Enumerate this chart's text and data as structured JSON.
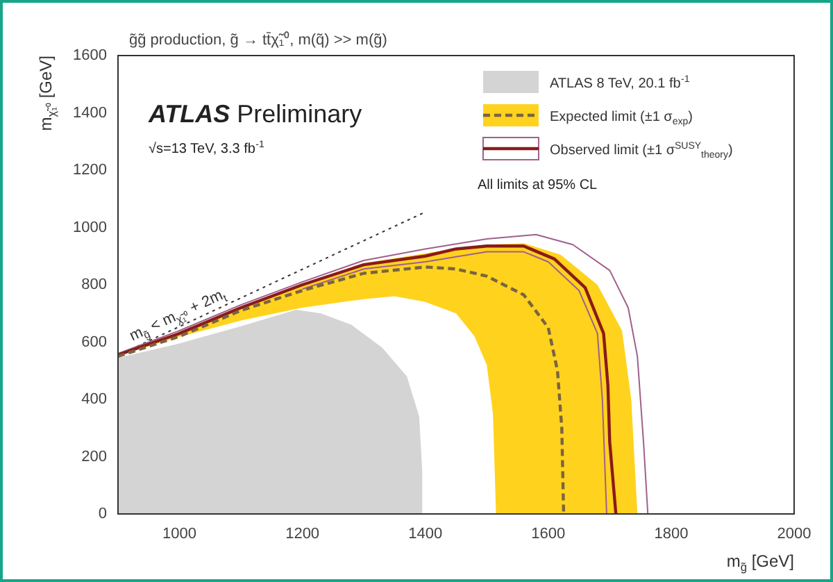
{
  "chart_data": {
    "type": "line",
    "title": "g̃g̃ production, g̃ → tt̄χ̃₁⁰, m(q̃) >> m(g̃)",
    "xlabel": "m$_{g̃}$ [GeV]",
    "ylabel": "m$_{χ̃₁⁰}$ [GeV]",
    "xlim": [
      900,
      2000
    ],
    "xticks": [
      1000,
      1200,
      1400,
      1600,
      1800,
      2000
    ],
    "ylim": [
      0,
      1600
    ],
    "yticks": [
      0,
      200,
      400,
      600,
      800,
      1000,
      1200,
      1400,
      1600
    ],
    "grid": false,
    "legend": "top right",
    "marker": "none",
    "annotations": [
      "ATLAS Preliminary",
      "√s=13 TeV, 3.3 fb$^{-1}$",
      "All limits at 95% CL",
      {
        "text": "m$_{g̃}$ < m$_{χ̃₁⁰}$ + 2m$_{t}$",
        "x": 1000,
        "y": 680
      }
    ],
    "series": [
      {
        "type": "area",
        "name": "ATLAS 8 TeV, 20.1 fb$^{-1}$",
        "color": "#d4d4d4",
        "x": [
          900,
          900,
          1000,
          1100,
          1190,
          1230,
          1280,
          1330,
          1370,
          1390,
          1395,
          1395
        ],
        "values": [
          0,
          545,
          595,
          655,
          713,
          700,
          660,
          580,
          480,
          340,
          150,
          0
        ]
      },
      {
        "name": "Expected limit (±1 σ$_{exp}$)",
        "color": "#7a6440",
        "line_style": "dashed",
        "x": [
          900,
          1000,
          1100,
          1200,
          1300,
          1400,
          1450,
          1500,
          1560,
          1600,
          1615,
          1622,
          1625
        ],
        "values": [
          550,
          620,
          710,
          780,
          840,
          862,
          855,
          830,
          765,
          650,
          500,
          300,
          0
        ]
      },
      {
        "type": "area",
        "color": "#ffd21e",
        "x": [
          900,
          1000,
          1100,
          1200,
          1300,
          1400,
          1500,
          1560,
          1620,
          1680,
          1720,
          1735,
          1745,
          1515,
          1510,
          1500,
          1480,
          1450,
          1400,
          1350,
          1300,
          1200,
          1100,
          1000,
          900
        ],
        "values": [
          558,
          635,
          725,
          800,
          875,
          910,
          940,
          945,
          905,
          800,
          640,
          400,
          0,
          0,
          350,
          520,
          620,
          700,
          740,
          760,
          750,
          720,
          675,
          618,
          552
        ]
      },
      {
        "name": "Observed limit (±1 σ$^{SUSY}$$_{theory}$)",
        "color": "#8b1a1a",
        "x": [
          900,
          1000,
          1100,
          1200,
          1300,
          1400,
          1450,
          1500,
          1560,
          1610,
          1660,
          1690,
          1697,
          1700,
          1710
        ],
        "values": [
          555,
          630,
          720,
          800,
          870,
          900,
          925,
          935,
          935,
          890,
          790,
          630,
          450,
          250,
          0
        ]
      },
      {
        "color": "#a0608a",
        "x": [
          900,
          1000,
          1100,
          1200,
          1300,
          1400,
          1500,
          1580,
          1640,
          1700,
          1730,
          1745,
          1755,
          1762
        ],
        "values": [
          560,
          640,
          730,
          810,
          885,
          925,
          960,
          975,
          940,
          850,
          720,
          550,
          250,
          0
        ]
      },
      {
        "color": "#a0608a",
        "x": [
          1200,
          1300,
          1400,
          1500,
          1560,
          1600,
          1650,
          1680,
          1688,
          1695
        ],
        "values": [
          785,
          855,
          880,
          915,
          915,
          880,
          780,
          630,
          400,
          0
        ]
      },
      {
        "color": "#333333",
        "line_style": "dotted",
        "x": [
          900,
          1400
        ],
        "values": [
          554,
          1054
        ]
      }
    ]
  }
}
